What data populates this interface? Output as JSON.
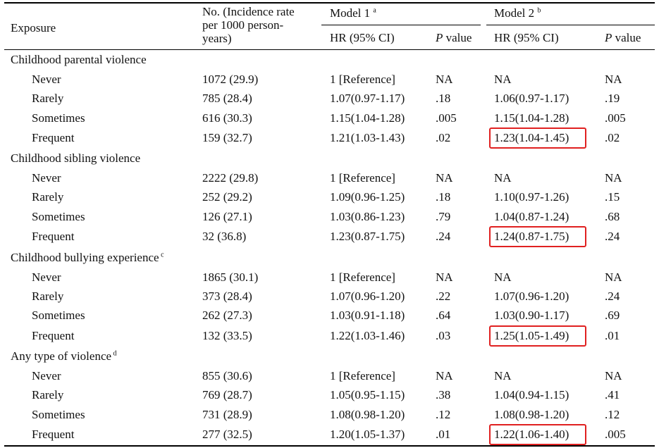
{
  "header": {
    "exposure": "Exposure",
    "incidence": "No. (Incidence rate per 1000 person-years)",
    "model1": "Model 1",
    "model1_sup": "a",
    "model2": "Model 2",
    "model2_sup": "b",
    "hr": "HR (95% CI)",
    "p_label": "P",
    "value_label": " value"
  },
  "groups": [
    {
      "title": "Childhood parental violence",
      "sup": "",
      "rows": [
        {
          "label": "Never",
          "no": "1072 (29.9)",
          "hr1": "1 [Reference]",
          "p1": "NA",
          "hr2": "NA",
          "p2": "NA",
          "highlight": false
        },
        {
          "label": "Rarely",
          "no": "785 (28.4)",
          "hr1": "1.07(0.97-1.17)",
          "p1": ".18",
          "hr2": "1.06(0.97-1.17)",
          "p2": ".19",
          "highlight": false
        },
        {
          "label": "Sometimes",
          "no": "616 (30.3)",
          "hr1": "1.15(1.04-1.28)",
          "p1": ".005",
          "hr2": "1.15(1.04-1.28)",
          "p2": ".005",
          "highlight": false
        },
        {
          "label": "Frequent",
          "no": "159 (32.7)",
          "hr1": "1.21(1.03-1.43)",
          "p1": ".02",
          "hr2": "1.23(1.04-1.45)",
          "p2": ".02",
          "highlight": true
        }
      ]
    },
    {
      "title": "Childhood sibling violence",
      "sup": "",
      "rows": [
        {
          "label": "Never",
          "no": "2222 (29.8)",
          "hr1": "1 [Reference]",
          "p1": "NA",
          "hr2": "NA",
          "p2": "NA",
          "highlight": false
        },
        {
          "label": "Rarely",
          "no": "252 (29.2)",
          "hr1": "1.09(0.96-1.25)",
          "p1": ".18",
          "hr2": "1.10(0.97-1.26)",
          "p2": ".15",
          "highlight": false
        },
        {
          "label": "Sometimes",
          "no": "126 (27.1)",
          "hr1": "1.03(0.86-1.23)",
          "p1": ".79",
          "hr2": "1.04(0.87-1.24)",
          "p2": ".68",
          "highlight": false
        },
        {
          "label": "Frequent",
          "no": "32 (36.8)",
          "hr1": "1.23(0.87-1.75)",
          "p1": ".24",
          "hr2": "1.24(0.87-1.75)",
          "p2": ".24",
          "highlight": true
        }
      ]
    },
    {
      "title": "Childhood bullying experience",
      "sup": "c",
      "rows": [
        {
          "label": "Never",
          "no": "1865 (30.1)",
          "hr1": "1 [Reference]",
          "p1": "NA",
          "hr2": "NA",
          "p2": "NA",
          "highlight": false
        },
        {
          "label": "Rarely",
          "no": "373 (28.4)",
          "hr1": "1.07(0.96-1.20)",
          "p1": ".22",
          "hr2": "1.07(0.96-1.20)",
          "p2": ".24",
          "highlight": false
        },
        {
          "label": "Sometimes",
          "no": "262 (27.3)",
          "hr1": "1.03(0.91-1.18)",
          "p1": ".64",
          "hr2": "1.03(0.90-1.17)",
          "p2": ".69",
          "highlight": false
        },
        {
          "label": "Frequent",
          "no": "132 (33.5)",
          "hr1": "1.22(1.03-1.46)",
          "p1": ".03",
          "hr2": "1.25(1.05-1.49)",
          "p2": ".01",
          "highlight": true
        }
      ]
    },
    {
      "title": "Any type of violence",
      "sup": "d",
      "rows": [
        {
          "label": "Never",
          "no": "855 (30.6)",
          "hr1": "1 [Reference]",
          "p1": "NA",
          "hr2": "NA",
          "p2": "NA",
          "highlight": false
        },
        {
          "label": "Rarely",
          "no": "769 (28.7)",
          "hr1": "1.05(0.95-1.15)",
          "p1": ".38",
          "hr2": "1.04(0.94-1.15)",
          "p2": ".41",
          "highlight": false
        },
        {
          "label": "Sometimes",
          "no": "731 (28.9)",
          "hr1": "1.08(0.98-1.20)",
          "p1": ".12",
          "hr2": "1.08(0.98-1.20)",
          "p2": ".12",
          "highlight": false
        },
        {
          "label": "Frequent",
          "no": "277 (32.5)",
          "hr1": "1.20(1.05-1.37)",
          "p1": ".01",
          "hr2": "1.22(1.06-1.40)",
          "p2": ".005",
          "highlight": true
        }
      ]
    }
  ],
  "colors": {
    "highlight": "#e02020",
    "rule": "#000000"
  }
}
